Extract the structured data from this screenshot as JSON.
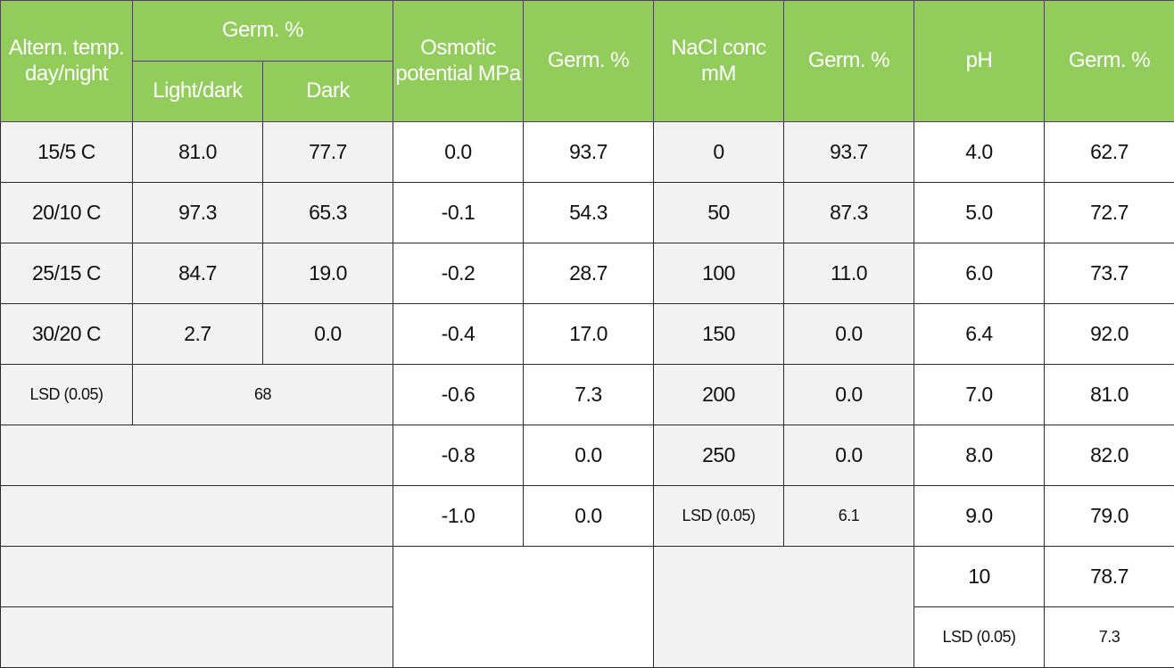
{
  "headers": {
    "altern_temp": "Altern. temp. day/night",
    "germ_group": "Germ. %",
    "light_dark": "Light/dark",
    "dark": "Dark",
    "osmotic": "Osmotic potential MPa",
    "germ_osmotic": "Germ. %",
    "nacl": "NaCl conc mM",
    "germ_nacl": "Germ. %",
    "ph": "pH",
    "germ_ph": "Germ. %"
  },
  "temperature": {
    "rows": [
      {
        "temp": "15/5 C",
        "light_dark": "81.0",
        "dark": "77.7"
      },
      {
        "temp": "20/10 C",
        "light_dark": "97.3",
        "dark": "65.3"
      },
      {
        "temp": "25/15 C",
        "light_dark": "84.7",
        "dark": "19.0"
      },
      {
        "temp": "30/20 C",
        "light_dark": "2.7",
        "dark": "0.0"
      }
    ],
    "lsd_label": "LSD (0.05)",
    "lsd_value": "68"
  },
  "osmotic": {
    "rows": [
      {
        "potential": "0.0",
        "germ": "93.7"
      },
      {
        "potential": "-0.1",
        "germ": "54.3"
      },
      {
        "potential": "-0.2",
        "germ": "28.7"
      },
      {
        "potential": "-0.4",
        "germ": "17.0"
      },
      {
        "potential": "-0.6",
        "germ": "7.3"
      },
      {
        "potential": "-0.8",
        "germ": "0.0"
      },
      {
        "potential": "-1.0",
        "germ": "0.0"
      }
    ]
  },
  "nacl": {
    "rows": [
      {
        "conc": "0",
        "germ": "93.7"
      },
      {
        "conc": "50",
        "germ": "87.3"
      },
      {
        "conc": "100",
        "germ": "11.0"
      },
      {
        "conc": "150",
        "germ": "0.0"
      },
      {
        "conc": "200",
        "germ": "0.0"
      },
      {
        "conc": "250",
        "germ": "0.0"
      }
    ],
    "lsd_label": "LSD (0.05)",
    "lsd_value": "6.1"
  },
  "ph": {
    "rows": [
      {
        "ph": "4.0",
        "germ": "62.7"
      },
      {
        "ph": "5.0",
        "germ": "72.7"
      },
      {
        "ph": "6.0",
        "germ": "73.7"
      },
      {
        "ph": "6.4",
        "germ": "92.0"
      },
      {
        "ph": "7.0",
        "germ": "81.0"
      },
      {
        "ph": "8.0",
        "germ": "82.0"
      },
      {
        "ph": "9.0",
        "germ": "79.0"
      },
      {
        "ph": "10",
        "germ": "78.7"
      }
    ],
    "lsd_label": "LSD (0.05)",
    "lsd_value": "7.3"
  },
  "colors": {
    "header_green": "#92cd5c",
    "header_text": "#ffffff",
    "gray_cell": "#f2f2f2"
  }
}
